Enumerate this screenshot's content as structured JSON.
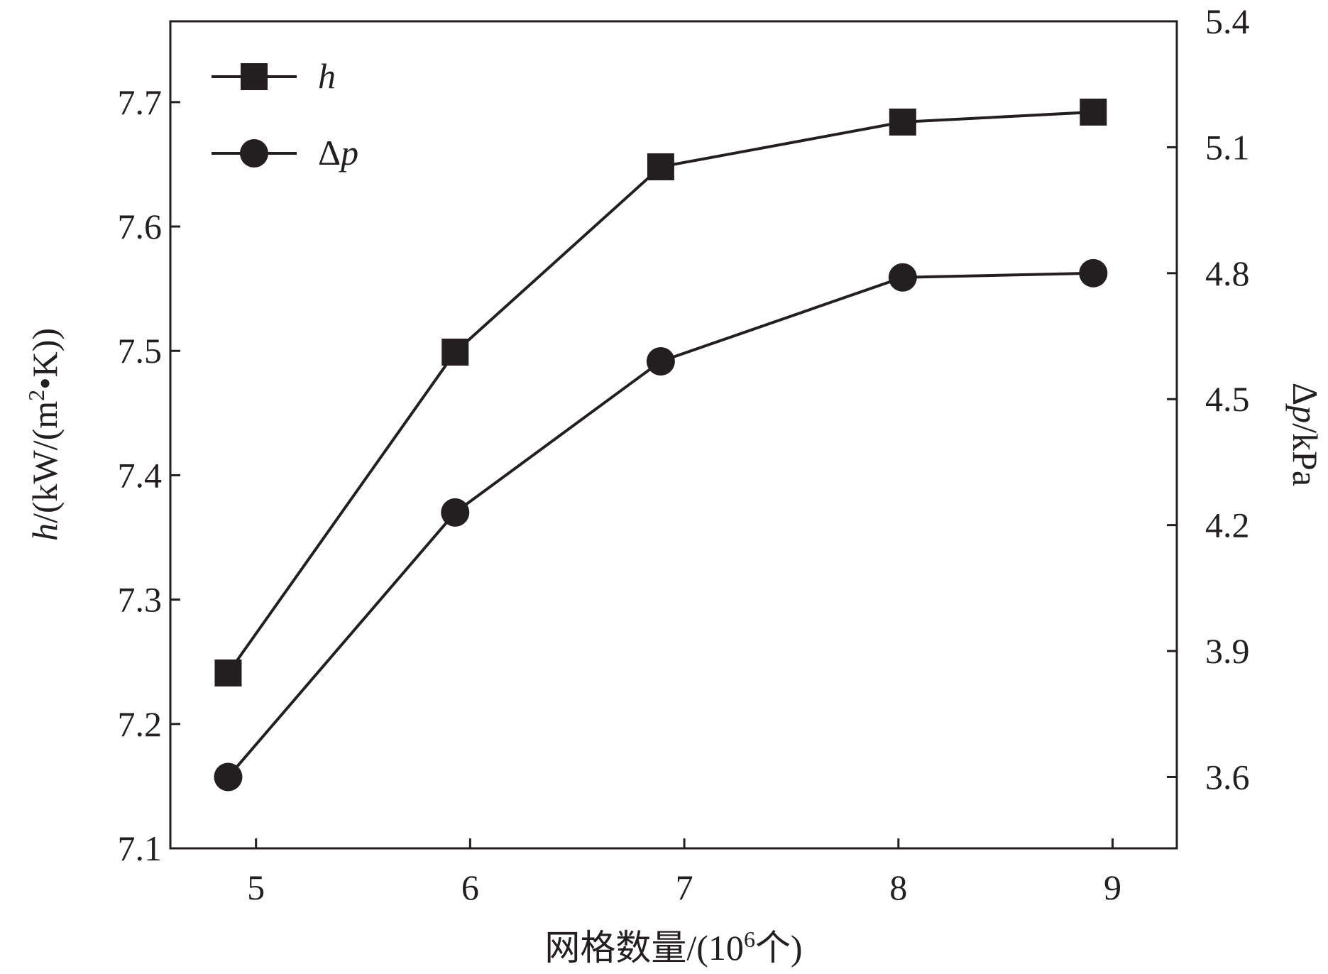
{
  "chart_data": {
    "type": "line",
    "title": "",
    "xlabel": "网格数量/(10⁶个)",
    "xlabel_parts": {
      "prefix": "网格数量/(10",
      "sup": "6",
      "suffix": "个)"
    },
    "ylabel_left": "h/(kW/(m²·K))",
    "ylabel_left_parts": {
      "var": "h",
      "rest1": "/(kW/(m",
      "sup": "2",
      "rest2": "•K))"
    },
    "ylabel_right": "Δp/kPa",
    "ylabel_right_parts": {
      "delta": "Δ",
      "var": "p",
      "rest": "/kPa"
    },
    "xlim": [
      4.6,
      9.3
    ],
    "ylim_left": [
      7.1,
      7.765
    ],
    "ylim_right": [
      3.43,
      5.4
    ],
    "x_ticks": [
      5,
      6,
      7,
      8,
      9
    ],
    "x_tick_labels": [
      "5",
      "6",
      "7",
      "8",
      "9"
    ],
    "y_left_ticks": [
      7.1,
      7.2,
      7.3,
      7.4,
      7.5,
      7.6,
      7.7
    ],
    "y_left_tick_labels": [
      "7.1",
      "7.2",
      "7.3",
      "7.4",
      "7.5",
      "7.6",
      "7.7"
    ],
    "y_right_ticks": [
      3.6,
      3.9,
      4.2,
      4.5,
      4.8,
      5.1,
      5.4
    ],
    "y_right_tick_labels": [
      "3.6",
      "3.9",
      "4.2",
      "4.5",
      "4.8",
      "5.1",
      "5.4"
    ],
    "grid": false,
    "legend_position": "top-left",
    "color": "#231f20",
    "series": [
      {
        "name": "h",
        "axis": "left",
        "marker": "square",
        "x": [
          4.87,
          5.93,
          6.89,
          8.02,
          8.91
        ],
        "values": [
          7.241,
          7.499,
          7.648,
          7.684,
          7.692
        ]
      },
      {
        "name": "Δp",
        "name_parts": {
          "delta": "Δ",
          "var": "p"
        },
        "axis": "right",
        "marker": "circle",
        "x": [
          4.87,
          5.93,
          6.89,
          8.02,
          8.91
        ],
        "values": [
          3.6,
          4.23,
          4.59,
          4.79,
          4.8
        ]
      }
    ]
  }
}
